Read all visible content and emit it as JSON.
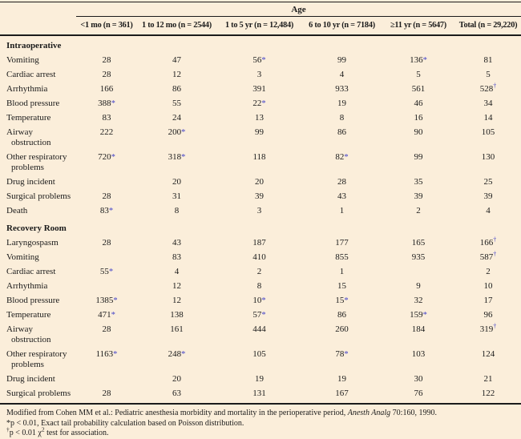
{
  "colors": {
    "background": "#fbeeda",
    "text": "#1b1b1b",
    "significance_marker": "#4646c8",
    "rule": "#1b1b1b"
  },
  "table": {
    "age_header": "Age",
    "columns": [
      "<1 mo (n = 361)",
      "1 to 12 mo (n = 2544)",
      "1 to 5 yr (n = 12,484)",
      "6 to 10 yr (n = 7184)",
      "≥11 yr (n = 5647)",
      "Total (n = 29,220)"
    ],
    "sections": [
      {
        "title": "Intraoperative",
        "rows": [
          {
            "label": "Vomiting",
            "values": [
              "28",
              "47",
              "56*",
              "99",
              "136*",
              "81"
            ]
          },
          {
            "label": "Cardiac arrest",
            "values": [
              "28",
              "12",
              "3",
              "4",
              "5",
              "5"
            ]
          },
          {
            "label": "Arrhythmia",
            "values": [
              "166",
              "86",
              "391",
              "933",
              "561",
              "528†"
            ]
          },
          {
            "label": "Blood pressure",
            "values": [
              "388*",
              "55",
              "22*",
              "19",
              "46",
              "34"
            ]
          },
          {
            "label": "Temperature",
            "values": [
              "83",
              "24",
              "13",
              "8",
              "16",
              "14"
            ]
          },
          {
            "label": "Airway obstruction",
            "values": [
              "222",
              "200*",
              "99",
              "86",
              "90",
              "105"
            ]
          },
          {
            "label": "Other respiratory problems",
            "values": [
              "720*",
              "318*",
              "118",
              "82*",
              "99",
              "130"
            ]
          },
          {
            "label": "Drug incident",
            "values": [
              "",
              "20",
              "20",
              "28",
              "35",
              "25"
            ]
          },
          {
            "label": "Surgical problems",
            "values": [
              "28",
              "31",
              "39",
              "43",
              "39",
              "39"
            ]
          },
          {
            "label": "Death",
            "values": [
              "83*",
              "8",
              "3",
              "1",
              "2",
              "4"
            ]
          }
        ]
      },
      {
        "title": "Recovery Room",
        "rows": [
          {
            "label": "Laryngospasm",
            "values": [
              "28",
              "43",
              "187",
              "177",
              "165",
              "166†"
            ]
          },
          {
            "label": "Vomiting",
            "values": [
              "",
              "83",
              "410",
              "855",
              "935",
              "587†"
            ]
          },
          {
            "label": "Cardiac arrest",
            "values": [
              "55*",
              "4",
              "2",
              "1",
              "",
              "2"
            ]
          },
          {
            "label": "Arrhythmia",
            "values": [
              "",
              "12",
              "8",
              "15",
              "9",
              "10"
            ]
          },
          {
            "label": "Blood pressure",
            "values": [
              "1385*",
              "12",
              "10*",
              "15*",
              "32",
              "17"
            ]
          },
          {
            "label": "Temperature",
            "values": [
              "471*",
              "138",
              "57*",
              "86",
              "159*",
              "96"
            ]
          },
          {
            "label": "Airway obstruction",
            "values": [
              "28",
              "161",
              "444",
              "260",
              "184",
              "319†"
            ]
          },
          {
            "label": "Other respiratory problems",
            "values": [
              "1163*",
              "248*",
              "105",
              "78*",
              "103",
              "124"
            ]
          },
          {
            "label": "Drug incident",
            "values": [
              "",
              "20",
              "19",
              "19",
              "30",
              "21"
            ]
          },
          {
            "label": "Surgical problems",
            "values": [
              "28",
              "63",
              "131",
              "167",
              "76",
              "122"
            ]
          }
        ]
      }
    ]
  },
  "footnotes": {
    "source_prefix": "Modified from Cohen MM et al.: Pediatric anesthesia morbidity and mortality in the perioperative period, ",
    "source_italic": "Anesth Analg",
    "source_suffix": " 70:160, 1990.",
    "star": "*p < 0.01, Exact tail probability calculation based on Poisson distribution.",
    "dagger_marker": "†",
    "dagger_text_pre": "p < 0.01 χ",
    "dagger_sup": "2",
    "dagger_text_post": " test for association."
  }
}
